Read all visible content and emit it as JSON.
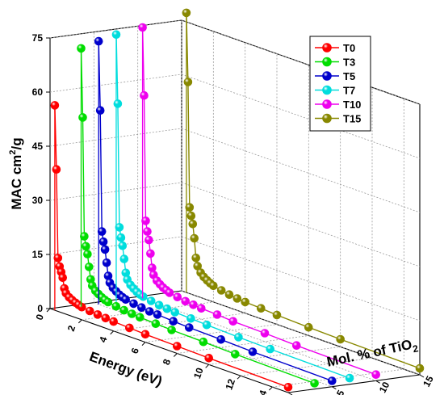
{
  "chart_data": {
    "type": "line",
    "chart_kind": "3d-waterfall-line",
    "title": "",
    "ylabel": "MAC cm²/g",
    "ylabel_parts": {
      "main": "MAC cm",
      "sup": "2",
      "tail": "/g"
    },
    "xlabel": "Energy (eV)",
    "zlabel": "Mol. % of TiO₂",
    "zlabel_parts": {
      "main": "Mol. % of TiO",
      "sub": "2"
    },
    "ylim": [
      0,
      75
    ],
    "xlim": [
      0,
      15
    ],
    "zlim": [
      0,
      15
    ],
    "yticks": [
      "0",
      "15",
      "30",
      "45",
      "60",
      "75"
    ],
    "xticks": [
      "0",
      "2",
      "4",
      "6",
      "8",
      "10",
      "12",
      "14"
    ],
    "zticks": [
      "0",
      "5",
      "10",
      "15"
    ],
    "grid": true,
    "legend_position": "top-right",
    "series": [
      {
        "name": "T0",
        "z": 0,
        "color": "#ff0000",
        "x": [
          0.3,
          0.4,
          0.5,
          0.6,
          0.7,
          0.8,
          0.9,
          1.0,
          1.2,
          1.4,
          1.6,
          1.8,
          2.0,
          2.5,
          3.0,
          3.5,
          4.0,
          5.0,
          6.0,
          8.0,
          10.0,
          15.0
        ],
        "y": [
          56.8,
          39.2,
          14.8,
          12.6,
          11.2,
          9.8,
          7.0,
          5.8,
          5.0,
          4.5,
          4.1,
          3.8,
          3.5,
          3.2,
          3.0,
          2.8,
          2.6,
          2.4,
          2.2,
          2.0,
          1.8,
          1.5
        ]
      },
      {
        "name": "T3",
        "z": 3,
        "color": "#00dd00",
        "x": [
          0.3,
          0.4,
          0.5,
          0.6,
          0.7,
          0.8,
          0.9,
          1.0,
          1.2,
          1.4,
          1.6,
          1.8,
          2.0,
          2.5,
          3.0,
          3.5,
          4.0,
          5.0,
          6.0,
          8.0,
          10.0,
          15.0
        ],
        "y": [
          71.6,
          52.6,
          19.8,
          17.2,
          15.2,
          11.8,
          8.5,
          6.9,
          5.8,
          5.2,
          4.6,
          4.2,
          3.9,
          3.5,
          3.2,
          3.0,
          2.8,
          2.6,
          2.4,
          2.2,
          1.9,
          1.6
        ]
      },
      {
        "name": "T5",
        "z": 5,
        "color": "#0000cc",
        "x": [
          0.3,
          0.4,
          0.5,
          0.6,
          0.7,
          0.8,
          0.9,
          1.0,
          1.2,
          1.4,
          1.6,
          1.8,
          2.0,
          2.5,
          3.0,
          3.5,
          4.0,
          5.0,
          6.0,
          8.0,
          10.0,
          15.0
        ],
        "y": [
          72.9,
          53.9,
          20.5,
          17.8,
          15.8,
          12.3,
          8.8,
          7.1,
          6.0,
          5.3,
          4.7,
          4.3,
          4.0,
          3.6,
          3.3,
          3.0,
          2.9,
          2.6,
          2.4,
          2.2,
          1.9,
          1.6
        ]
      },
      {
        "name": "T7",
        "z": 7,
        "color": "#00dddd",
        "x": [
          0.3,
          0.4,
          0.5,
          0.6,
          0.7,
          0.8,
          0.9,
          1.0,
          1.2,
          1.4,
          1.6,
          1.8,
          2.0,
          2.5,
          3.0,
          3.5,
          4.0,
          5.0,
          6.0,
          8.0,
          10.0,
          15.0
        ],
        "y": [
          74.1,
          55.1,
          21.0,
          18.3,
          16.2,
          12.7,
          9.0,
          7.3,
          6.1,
          5.4,
          4.8,
          4.4,
          4.1,
          3.7,
          3.3,
          3.1,
          2.9,
          2.7,
          2.5,
          2.2,
          2.0,
          1.7
        ]
      },
      {
        "name": "T10",
        "z": 10,
        "color": "#ee00ee",
        "x": [
          0.3,
          0.4,
          0.5,
          0.6,
          0.7,
          0.8,
          0.9,
          1.0,
          1.2,
          1.4,
          1.6,
          1.8,
          2.0,
          2.5,
          3.0,
          3.5,
          4.0,
          5.0,
          6.0,
          8.0,
          10.0,
          15.0
        ],
        "y": [
          75.1,
          56.4,
          21.8,
          19.0,
          16.8,
          13.2,
          9.4,
          7.6,
          6.3,
          5.6,
          5.0,
          4.6,
          4.2,
          3.8,
          3.4,
          3.2,
          3.0,
          2.8,
          2.5,
          2.3,
          2.0,
          1.7
        ]
      },
      {
        "name": "T15",
        "z": 15,
        "color": "#888800",
        "x": [
          0.3,
          0.4,
          0.5,
          0.6,
          0.7,
          0.8,
          0.9,
          1.0,
          1.2,
          1.4,
          1.6,
          1.8,
          2.0,
          2.5,
          3.0,
          3.5,
          4.0,
          5.0,
          6.0,
          8.0,
          10.0,
          15.0
        ],
        "y": [
          77.5,
          58.5,
          23.9,
          21.7,
          19.6,
          15.8,
          10.5,
          8.4,
          6.9,
          6.0,
          5.4,
          4.9,
          4.5,
          4.0,
          3.6,
          3.3,
          3.1,
          2.9,
          2.6,
          2.3,
          2.1,
          1.8
        ]
      }
    ]
  }
}
